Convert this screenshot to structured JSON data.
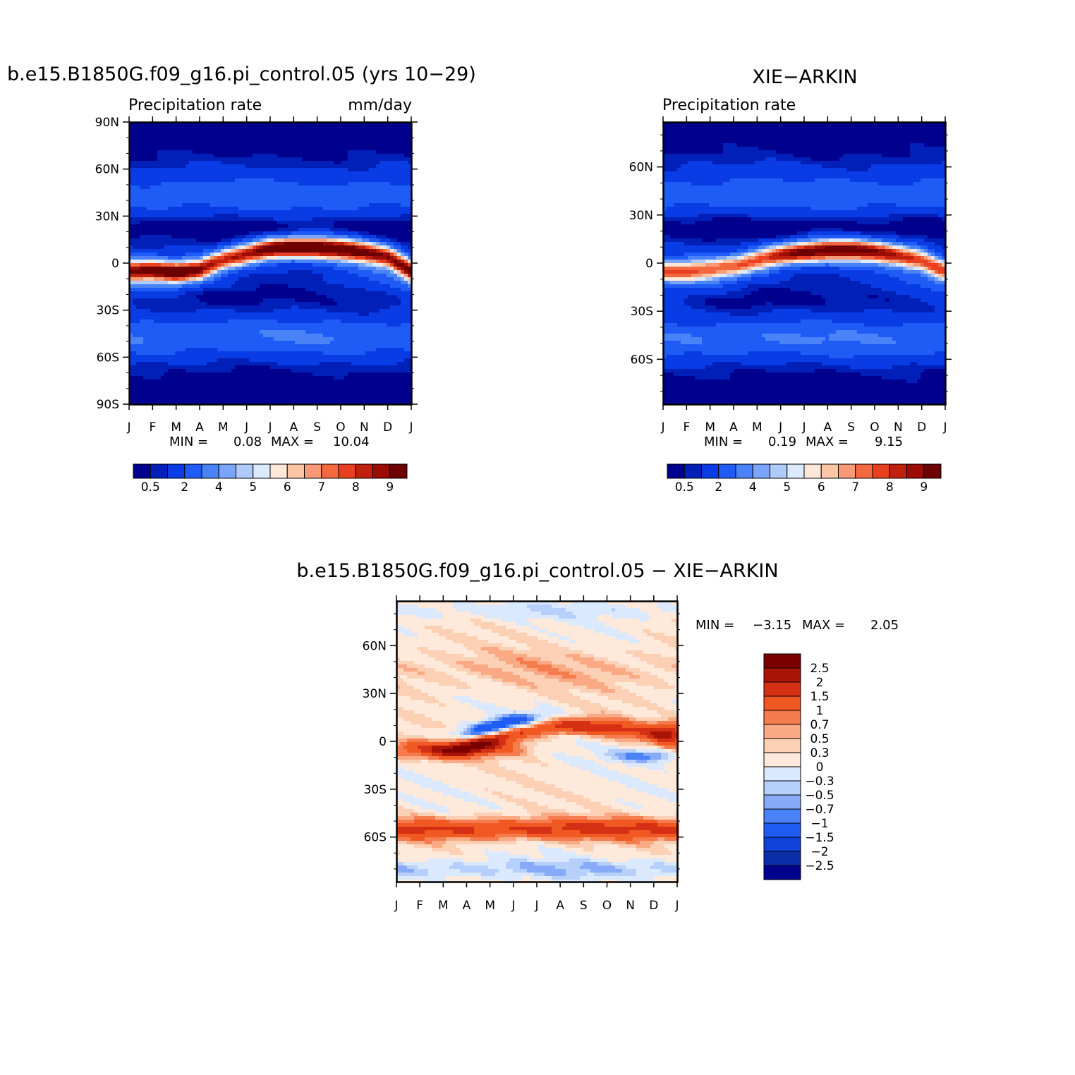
{
  "chart_data": [
    {
      "type": "heatmap",
      "id": "model",
      "title": "b.e15.B1850G.f09_g16.pi_control.05 (yrs 10−29)",
      "left_string": "Precipitation rate",
      "right_string": "mm/day",
      "months": [
        "J",
        "F",
        "M",
        "A",
        "M",
        "J",
        "J",
        "A",
        "S",
        "O",
        "N",
        "D",
        "J"
      ],
      "lat_labels": [
        "90N",
        "60N",
        "30N",
        "0",
        "30S",
        "60S",
        "90S"
      ],
      "lat_label_values": [
        90,
        60,
        30,
        0,
        -30,
        -60,
        -90
      ],
      "ylim": [
        -90,
        90
      ],
      "min_label": "MIN =",
      "min": "0.08",
      "max_label": "MAX =",
      "max": "10.04",
      "colorbar_labels": [
        "0.5",
        "2",
        "4",
        "5",
        "6",
        "7",
        "8",
        "9"
      ],
      "itcz_lat": [
        -5,
        -5,
        -6,
        -4,
        2,
        6,
        9,
        10,
        10,
        9,
        7,
        4,
        -5
      ],
      "itcz_peak": [
        8.4,
        8.5,
        8.8,
        8.1,
        7.2,
        8.0,
        9.2,
        9.6,
        9.5,
        9.1,
        8.4,
        7.8,
        8.4
      ]
    },
    {
      "type": "heatmap",
      "id": "obs",
      "title": "XIE−ARKIN",
      "left_string": "Precipitation rate",
      "months": [
        "J",
        "F",
        "M",
        "A",
        "M",
        "J",
        "J",
        "A",
        "S",
        "O",
        "N",
        "D",
        "J"
      ],
      "lat_labels": [
        "60N",
        "30N",
        "0",
        "30S",
        "60S"
      ],
      "lat_label_values": [
        60,
        30,
        0,
        -30,
        -60
      ],
      "ylim": [
        -88,
        88
      ],
      "min_label": "MIN =",
      "min": "0.19",
      "max_label": "MAX =",
      "max": "9.15",
      "colorbar_labels": [
        "0.5",
        "2",
        "4",
        "5",
        "6",
        "7",
        "8",
        "9"
      ],
      "itcz_lat": [
        -5,
        -5,
        -4,
        -2,
        2,
        5,
        7,
        8,
        8,
        7,
        5,
        2,
        -5
      ],
      "itcz_peak": [
        6.5,
        6.6,
        6.4,
        6.1,
        6.8,
        7.8,
        8.7,
        9.0,
        8.8,
        8.0,
        7.0,
        6.4,
        6.5
      ]
    },
    {
      "type": "heatmap",
      "id": "diff",
      "title": "b.e15.B1850G.f09_g16.pi_control.05 − XIE−ARKIN",
      "months": [
        "J",
        "F",
        "M",
        "A",
        "M",
        "J",
        "J",
        "A",
        "S",
        "O",
        "N",
        "D",
        "J"
      ],
      "lat_labels": [
        "60N",
        "30N",
        "0",
        "30S",
        "60S"
      ],
      "lat_label_values": [
        60,
        30,
        0,
        -30,
        -60
      ],
      "ylim": [
        -88,
        88
      ],
      "min_label": "MIN =",
      "min": "−3.15",
      "max_label": "MAX =",
      "max": "2.05",
      "colorbar_labels": [
        "2.5",
        "2",
        "1.5",
        "1",
        "0.7",
        "0.5",
        "0.3",
        "0",
        "−0.3",
        "−0.5",
        "−0.7",
        "−1",
        "−1.5",
        "−2",
        "−2.5"
      ]
    }
  ],
  "colors": {
    "precip_levels": [
      0.5,
      1,
      2,
      3,
      4,
      4.5,
      5,
      5.5,
      6,
      6.5,
      7,
      7.5,
      8,
      8.5,
      9
    ],
    "precip_palette": [
      "#00008f",
      "#0020b8",
      "#0a3ce6",
      "#1f5cf5",
      "#4a82f7",
      "#7aa5f8",
      "#b0cbfa",
      "#dceafe",
      "#ffe8d8",
      "#fdc4a5",
      "#f89a76",
      "#f3683f",
      "#e84020",
      "#c0200c",
      "#9a0c04",
      "#6e0000"
    ],
    "diff_levels": [
      -2.5,
      -2,
      -1.5,
      -1,
      -0.7,
      -0.5,
      -0.3,
      0,
      0.3,
      0.5,
      0.7,
      1,
      1.5,
      2,
      2.5
    ],
    "diff_palette": [
      "#00008f",
      "#0a2ea8",
      "#0e42d8",
      "#1f5cf5",
      "#4a82f7",
      "#87abf9",
      "#b7cffb",
      "#dbe9fe",
      "#ffe9da",
      "#fcd0b5",
      "#f9aa84",
      "#f47c4f",
      "#f05a22",
      "#d63014",
      "#a81406",
      "#7a0000"
    ]
  }
}
